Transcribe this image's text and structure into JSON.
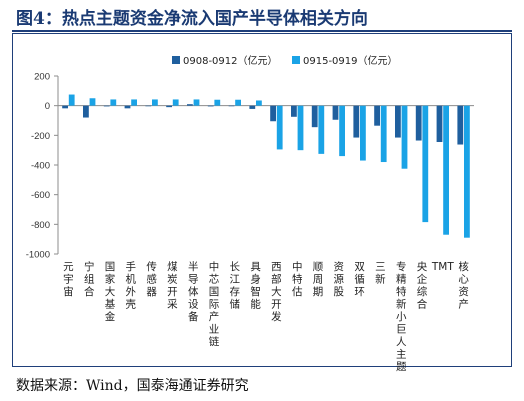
{
  "figure_title": "图4：热点主题资金净流入国产半导体相关方向",
  "source_text": "数据来源：Wind，国泰海通证券研究",
  "colors": {
    "series1": "#1f5f9e",
    "series2": "#1aa3e6",
    "title": "#1a3a73",
    "frame": "#1f3f7a"
  },
  "chart_data": {
    "type": "bar",
    "title": "",
    "xlabel": "",
    "ylabel": "",
    "ylim": [
      -1000,
      200
    ],
    "yticks": [
      200,
      0,
      -200,
      -400,
      -600,
      -800,
      -1000
    ],
    "grid": false,
    "legend_position": "top-right",
    "categories": [
      "元宇宙",
      "宁组合",
      "国家大基金",
      "手机外壳",
      "传感器",
      "煤炭开采",
      "半导体设备",
      "中芯国际产业链",
      "长江存储",
      "具身智能",
      "西部大开发",
      "中特估",
      "顺周期",
      "资源股",
      "双循环",
      "三新",
      "专精特新小巨人主题",
      "央企综合",
      "TMT",
      "核心资产"
    ],
    "series": [
      {
        "name": "0908-0912（亿元）",
        "values": [
          -18,
          -80,
          -5,
          -18,
          -2,
          -10,
          10,
          -5,
          0,
          -22,
          -105,
          -75,
          -145,
          -95,
          -215,
          -135,
          -215,
          -235,
          -245,
          -262
        ]
      },
      {
        "name": "0915-0919（亿元）",
        "values": [
          75,
          50,
          42,
          42,
          42,
          42,
          42,
          40,
          40,
          35,
          -295,
          -300,
          -325,
          -340,
          -370,
          -380,
          -425,
          -785,
          -870,
          -890
        ]
      }
    ]
  }
}
